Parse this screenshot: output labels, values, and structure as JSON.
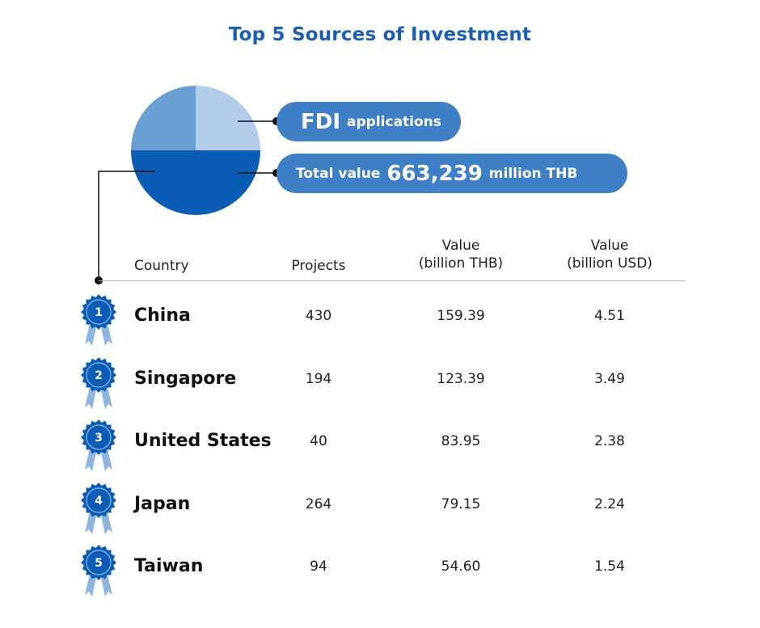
{
  "title": "Top 5 Sources of Investment",
  "chart_data": [
    {
      "type": "pie",
      "title": "",
      "slices": [
        {
          "label": "top-right",
          "value": 25,
          "color": "#b3cdea"
        },
        {
          "label": "bottom",
          "value": 50,
          "color": "#0b5cb5"
        },
        {
          "label": "top-left",
          "value": 25,
          "color": "#6a9fd4"
        }
      ]
    },
    {
      "type": "table",
      "columns": [
        "Country",
        "Projects",
        "Value (billion THB)",
        "Value (billion USD)"
      ],
      "rows": [
        {
          "rank": "1",
          "country": "China",
          "projects": "430",
          "thb": "159.39",
          "usd": "4.51"
        },
        {
          "rank": "2",
          "country": "Singapore",
          "projects": "194",
          "thb": "123.39",
          "usd": "3.49"
        },
        {
          "rank": "3",
          "country": "United States",
          "projects": "40",
          "thb": "83.95",
          "usd": "2.38"
        },
        {
          "rank": "4",
          "country": "Japan",
          "projects": "264",
          "thb": "79.15",
          "usd": "2.24"
        },
        {
          "rank": "5",
          "country": "Taiwan",
          "projects": "94",
          "thb": "54.60",
          "usd": "1.54"
        }
      ]
    }
  ],
  "callouts": {
    "fdi_big": "FDI",
    "fdi_small": "applications",
    "total_prefix": "Total value",
    "total_value": "663,239",
    "total_suffix": "million THB"
  },
  "headers": {
    "country": "Country",
    "projects": "Projects",
    "thb_line1": "Value",
    "thb_line2": "(billion THB)",
    "usd_line1": "Value",
    "usd_line2": "(billion USD)"
  },
  "colors": {
    "title": "#1a5fb4",
    "pill": "#3f7fc5",
    "badge": "#0b5cb5",
    "ribbon": "#8fb4de"
  }
}
